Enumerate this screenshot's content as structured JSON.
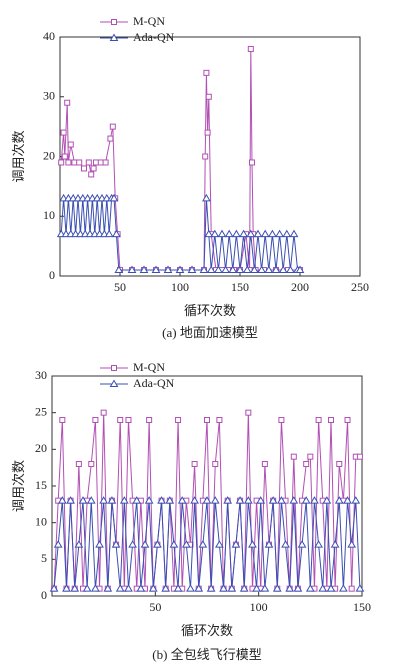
{
  "chart_data": [
    {
      "type": "line",
      "xlabel": "循环次数",
      "ylabel": "调用次数",
      "caption": "(a) 地面加速模型",
      "xlim": [
        0,
        250
      ],
      "xticks": [
        50,
        100,
        150,
        200,
        250
      ],
      "ylim": [
        0,
        40
      ],
      "yticks": [
        0,
        10,
        20,
        30,
        40
      ],
      "series": [
        {
          "name": "M-QN",
          "color": "#b24fb4",
          "marker": "square",
          "x": [
            1,
            3,
            4,
            6,
            7,
            9,
            12,
            16,
            20,
            24,
            26,
            28,
            30,
            34,
            38,
            42,
            44,
            46,
            48,
            50,
            60,
            70,
            80,
            90,
            100,
            110,
            120,
            121,
            122,
            123,
            124,
            126,
            130,
            135,
            140,
            145,
            150,
            155,
            158,
            159,
            160,
            161,
            163,
            170,
            180,
            190,
            200
          ],
          "values": [
            19,
            24,
            20,
            29,
            19,
            22,
            19,
            19,
            18,
            19,
            17,
            18,
            19,
            19,
            19,
            23,
            25,
            13,
            7,
            1,
            1,
            1,
            1,
            1,
            1,
            1,
            1,
            20,
            34,
            24,
            30,
            7,
            1,
            1,
            1,
            1,
            1,
            7,
            1,
            38,
            19,
            7,
            1,
            1,
            1,
            1,
            1
          ]
        },
        {
          "name": "Ada-QN",
          "color": "#3b4fb3",
          "marker": "triangle",
          "x": [
            1,
            3,
            5,
            7,
            9,
            11,
            13,
            15,
            17,
            19,
            21,
            23,
            25,
            27,
            29,
            31,
            33,
            35,
            37,
            39,
            41,
            43,
            45,
            47,
            49,
            60,
            70,
            80,
            90,
            100,
            110,
            120,
            122,
            124,
            126,
            129,
            132,
            135,
            138,
            141,
            144,
            147,
            150,
            153,
            156,
            159,
            162,
            165,
            168,
            171,
            174,
            177,
            180,
            183,
            186,
            189,
            192,
            195,
            198,
            200
          ],
          "values": [
            7,
            13,
            7,
            13,
            7,
            13,
            7,
            13,
            7,
            13,
            7,
            13,
            7,
            13,
            7,
            13,
            7,
            13,
            7,
            13,
            7,
            13,
            13,
            7,
            1,
            1,
            1,
            1,
            1,
            1,
            1,
            1,
            13,
            7,
            1,
            7,
            1,
            7,
            1,
            7,
            1,
            7,
            1,
            7,
            1,
            7,
            1,
            7,
            1,
            7,
            1,
            7,
            1,
            7,
            1,
            7,
            1,
            7,
            1,
            1
          ]
        }
      ],
      "legend": "upper left"
    },
    {
      "type": "line",
      "xlabel": "循环次数",
      "ylabel": "调用次数",
      "caption": "(b) 全包线飞行模型",
      "xlim": [
        0,
        150
      ],
      "xticks": [
        50,
        100,
        150
      ],
      "ylim": [
        0,
        30
      ],
      "yticks": [
        0,
        5,
        10,
        15,
        20,
        25,
        30
      ],
      "x": [
        1,
        3,
        5,
        7,
        9,
        11,
        13,
        15,
        17,
        19,
        21,
        23,
        25,
        27,
        29,
        31,
        33,
        35,
        37,
        39,
        41,
        43,
        45,
        47,
        49,
        51,
        53,
        55,
        57,
        59,
        61,
        63,
        65,
        67,
        69,
        71,
        73,
        75,
        77,
        79,
        81,
        83,
        85,
        87,
        89,
        91,
        93,
        95,
        97,
        99,
        101,
        103,
        105,
        107,
        109,
        111,
        113,
        115,
        117,
        119,
        121,
        123,
        125,
        127,
        129,
        131,
        133,
        135,
        137,
        139,
        141,
        143,
        145,
        147,
        149
      ],
      "series": [
        {
          "name": "M-QN",
          "color": "#b24fb4",
          "marker": "square",
          "values": [
            1,
            13,
            24,
            1,
            13,
            1,
            18,
            1,
            13,
            18,
            24,
            1,
            25,
            1,
            13,
            7,
            24,
            1,
            24,
            13,
            1,
            13,
            1,
            24,
            1,
            7,
            13,
            1,
            13,
            1,
            24,
            1,
            13,
            7,
            18,
            1,
            13,
            24,
            1,
            18,
            24,
            1,
            13,
            1,
            7,
            13,
            1,
            25,
            1,
            13,
            1,
            18,
            7,
            13,
            1,
            24,
            13,
            1,
            19,
            1,
            13,
            18,
            19,
            1,
            24,
            13,
            1,
            24,
            1,
            18,
            13,
            24,
            1,
            19,
            19
          ]
        },
        {
          "name": "Ada-QN",
          "color": "#3b4fb3",
          "marker": "triangle",
          "values": [
            1,
            7,
            13,
            1,
            13,
            1,
            7,
            13,
            1,
            13,
            1,
            7,
            13,
            1,
            13,
            7,
            1,
            13,
            1,
            7,
            13,
            1,
            7,
            13,
            1,
            7,
            13,
            1,
            13,
            7,
            1,
            13,
            7,
            1,
            13,
            1,
            7,
            13,
            1,
            13,
            7,
            1,
            13,
            1,
            7,
            13,
            1,
            13,
            7,
            1,
            13,
            1,
            7,
            13,
            1,
            13,
            7,
            1,
            13,
            1,
            7,
            13,
            1,
            13,
            7,
            1,
            13,
            1,
            7,
            13,
            1,
            13,
            7,
            13,
            1
          ]
        }
      ],
      "legend": "upper left"
    }
  ]
}
